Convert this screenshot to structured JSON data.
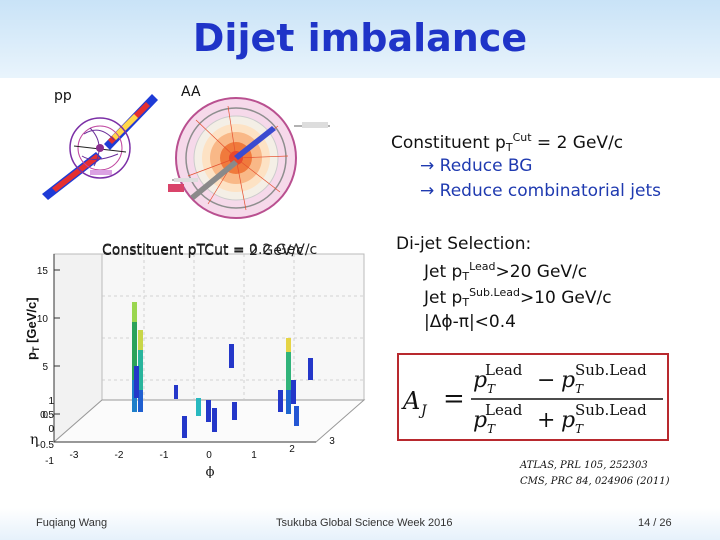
{
  "slide": {
    "title": "Dijet imbalance",
    "label_pp": "pp",
    "label_aa": "AA",
    "constituent_cut": {
      "prefix": "Constituent p",
      "sub": "T",
      "sup": "Cut",
      "suffix": " = 2 GeV/c"
    },
    "bullets": [
      "→ Reduce BG",
      "→ Reduce combinatorial jets"
    ],
    "plot_overlay": {
      "text1": "Constituent pTCut = 0.2 GeV/c",
      "text2": "Constituent pTCut = 2 GeV/c"
    },
    "dijet": {
      "heading": "Di-jet Selection:",
      "line1_prefix": "Jet p",
      "line1_sub": "T",
      "line1_sup": "Lead",
      "line1_suffix": ">20 GeV/c",
      "line2_prefix": "Jet p",
      "line2_sub": "T",
      "line2_sup": "Sub.Lead",
      "line2_suffix": ">10 GeV/c",
      "line3": "|Δϕ-π|<0.4"
    },
    "formula": {
      "lhs": "A",
      "lhs_sub": "J",
      "eq": "=",
      "p": "p",
      "T": "T",
      "lead": "Lead",
      "sublead": "Sub.Lead",
      "minus": "−",
      "plus": "+"
    },
    "refs": [
      "ATLAS, PRL 105, 252303",
      "CMS, PRC 84, 024906 (2011)"
    ],
    "footer": {
      "left": "Fuqiang Wang",
      "center": "Tsukuba Global Science Week 2016",
      "right": "14 / 26"
    }
  },
  "plot": {
    "ylabel": "p",
    "ylabel_sub": "T",
    "ylabel_unit": " [GeV/c]",
    "y_ticks": [
      "15",
      "10",
      "5",
      "0"
    ],
    "eta_ticks": [
      "1",
      "0.5",
      "0",
      "-0.5",
      "-1"
    ],
    "phi_ticks": [
      "-3",
      "-2",
      "-1",
      "0",
      "1",
      "2",
      "3"
    ],
    "eta_label": "η",
    "phi_label": "ϕ"
  },
  "colors": {
    "title": "#1f34c8",
    "arrow": "#1f3ab0",
    "formula_border": "#b8292e"
  }
}
